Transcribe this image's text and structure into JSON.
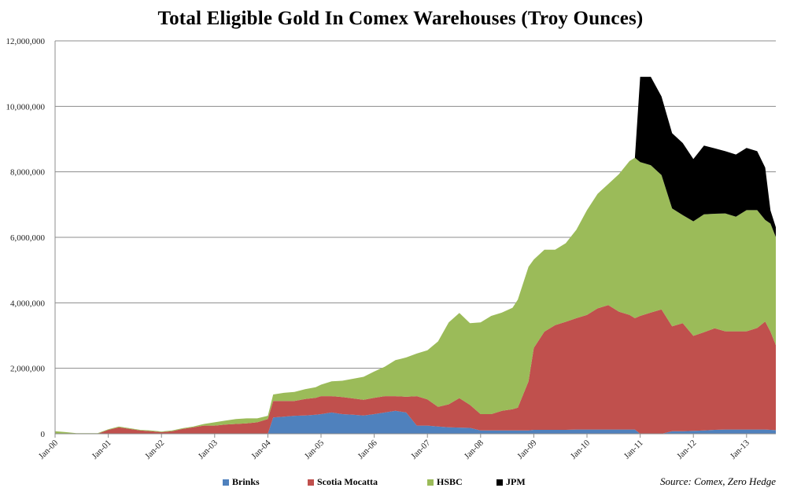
{
  "chart_data": {
    "type": "area",
    "stacked": true,
    "title": "Total Eligible Gold In Comex Warehouses (Troy Ounces)",
    "source": "Source: Comex, Zero Hedge",
    "xlabel": "",
    "ylabel": "",
    "ylim": [
      0,
      12000000
    ],
    "yticks": [
      "0",
      "2,000,000",
      "4,000,000",
      "6,000,000",
      "8,000,000",
      "10,000,000",
      "12,000,000"
    ],
    "ytick_values": [
      0,
      2000000,
      4000000,
      6000000,
      8000000,
      10000000,
      12000000
    ],
    "xlim": [
      2000.0,
      2013.55
    ],
    "xticks": [
      "Jan-00",
      "Jan-01",
      "Jan-02",
      "Jan-03",
      "Jan-04",
      "Jan-05",
      "Jan-06",
      "Jan-07",
      "Jan-08",
      "Jan-09",
      "Jan-10",
      "Jan-11",
      "Jan-12",
      "Jan-13"
    ],
    "xtick_values": [
      2000,
      2001,
      2002,
      2003,
      2004,
      2005,
      2006,
      2007,
      2008,
      2009,
      2010,
      2011,
      2012,
      2013
    ],
    "grid": "horizontal",
    "legend": "bottom",
    "x": [
      2000.0,
      2000.2,
      2000.4,
      2000.6,
      2000.8,
      2001.0,
      2001.2,
      2001.4,
      2001.6,
      2001.8,
      2002.0,
      2002.2,
      2002.4,
      2002.6,
      2002.8,
      2003.0,
      2003.2,
      2003.4,
      2003.6,
      2003.8,
      2004.0,
      2004.1,
      2004.3,
      2004.5,
      2004.7,
      2004.9,
      2005.0,
      2005.2,
      2005.4,
      2005.6,
      2005.8,
      2006.0,
      2006.2,
      2006.4,
      2006.6,
      2006.8,
      2007.0,
      2007.2,
      2007.4,
      2007.6,
      2007.8,
      2008.0,
      2008.2,
      2008.4,
      2008.6,
      2008.7,
      2008.9,
      2009.0,
      2009.2,
      2009.4,
      2009.6,
      2009.8,
      2010.0,
      2010.2,
      2010.4,
      2010.6,
      2010.8,
      2010.9,
      2011.0,
      2011.2,
      2011.4,
      2011.6,
      2011.8,
      2012.0,
      2012.2,
      2012.4,
      2012.6,
      2012.8,
      2013.0,
      2013.2,
      2013.35,
      2013.45,
      2013.55
    ],
    "series": [
      {
        "name": "Brinks",
        "color": "#4f81bd",
        "values": [
          0,
          0,
          0,
          0,
          0,
          0,
          0,
          0,
          0,
          0,
          0,
          0,
          0,
          0,
          0,
          0,
          0,
          0,
          0,
          0,
          0,
          500000,
          520000,
          550000,
          560000,
          580000,
          600000,
          650000,
          600000,
          580000,
          560000,
          600000,
          650000,
          700000,
          650000,
          250000,
          250000,
          220000,
          200000,
          190000,
          180000,
          100000,
          100000,
          100000,
          100000,
          100000,
          100000,
          120000,
          120000,
          120000,
          120000,
          130000,
          130000,
          130000,
          130000,
          130000,
          130000,
          130000,
          0,
          0,
          0,
          80000,
          80000,
          90000,
          100000,
          120000,
          130000,
          130000,
          130000,
          130000,
          130000,
          120000,
          110000
        ]
      },
      {
        "name": "Scotia Mocatta",
        "color": "#c0504d",
        "values": [
          0,
          0,
          0,
          0,
          0,
          120000,
          200000,
          150000,
          100000,
          80000,
          50000,
          80000,
          150000,
          200000,
          250000,
          250000,
          280000,
          300000,
          320000,
          350000,
          450000,
          500000,
          480000,
          450000,
          500000,
          520000,
          550000,
          500000,
          520000,
          500000,
          480000,
          500000,
          500000,
          450000,
          480000,
          900000,
          800000,
          600000,
          700000,
          900000,
          700000,
          500000,
          500000,
          600000,
          650000,
          700000,
          1500000,
          2500000,
          3000000,
          3200000,
          3300000,
          3400000,
          3500000,
          3700000,
          3800000,
          3600000,
          3500000,
          3400000,
          3600000,
          3700000,
          3800000,
          3200000,
          3300000,
          2900000,
          3000000,
          3100000,
          3000000,
          3000000,
          3000000,
          3100000,
          3300000,
          3000000,
          2600000
        ]
      },
      {
        "name": "HSBC",
        "color": "#9bbb59",
        "values": [
          80000,
          50000,
          20000,
          20000,
          20000,
          20000,
          20000,
          20000,
          20000,
          20000,
          20000,
          20000,
          20000,
          20000,
          50000,
          100000,
          120000,
          150000,
          150000,
          120000,
          100000,
          200000,
          250000,
          280000,
          300000,
          320000,
          350000,
          450000,
          500000,
          600000,
          700000,
          800000,
          900000,
          1100000,
          1200000,
          1300000,
          1500000,
          2000000,
          2500000,
          2600000,
          2500000,
          2800000,
          3000000,
          3000000,
          3100000,
          3300000,
          3500000,
          2700000,
          2500000,
          2300000,
          2400000,
          2700000,
          3200000,
          3500000,
          3700000,
          4200000,
          4700000,
          4900000,
          4700000,
          4500000,
          4100000,
          3600000,
          3300000,
          3500000,
          3600000,
          3500000,
          3600000,
          3500000,
          3700000,
          3600000,
          3100000,
          3300000,
          3300000
        ]
      },
      {
        "name": "JPM",
        "color": "#000000",
        "values": [
          0,
          0,
          0,
          0,
          0,
          0,
          0,
          0,
          0,
          0,
          0,
          0,
          0,
          0,
          0,
          0,
          0,
          0,
          0,
          0,
          0,
          0,
          0,
          0,
          0,
          0,
          0,
          0,
          0,
          0,
          0,
          0,
          0,
          0,
          0,
          0,
          0,
          0,
          0,
          0,
          0,
          0,
          0,
          0,
          0,
          0,
          0,
          0,
          0,
          0,
          0,
          0,
          0,
          0,
          0,
          0,
          0,
          0,
          2600000,
          2700000,
          2400000,
          2300000,
          2200000,
          1900000,
          2100000,
          2000000,
          1900000,
          1900000,
          1900000,
          1800000,
          1600000,
          400000,
          300000
        ]
      }
    ]
  }
}
